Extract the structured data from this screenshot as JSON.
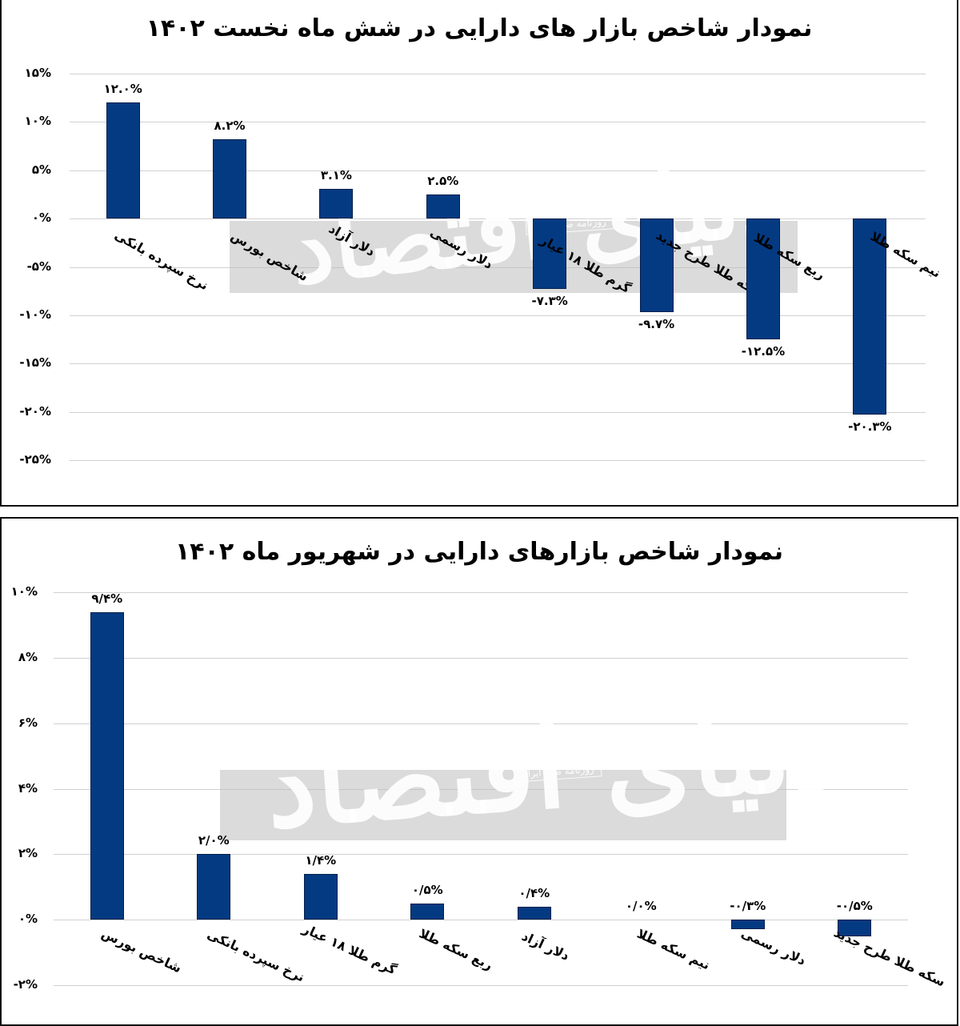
{
  "colors": {
    "bar": "#043a82",
    "grid": "#d0d0d0",
    "border": "#111111",
    "watermark": "#bebebe"
  },
  "watermark": {
    "main": "دنیای اقتصاد",
    "sub": "روزنامه صبح ایران"
  },
  "chart_data": [
    {
      "type": "bar",
      "title": "نمودار شاخص بازار های دارایی در شش ماه نخست ۱۴۰۲",
      "xlabel": "",
      "ylabel": "",
      "ylim": [
        -25,
        15
      ],
      "grid": true,
      "legend": "none",
      "yticks": [
        "۱۵%",
        "۱۰%",
        "۵%",
        "۰%",
        "-۵%",
        "-۱۰%",
        "-۱۵%",
        "-۲۰%",
        "-۲۵%"
      ],
      "ytick_values": [
        15,
        10,
        5,
        0,
        -5,
        -10,
        -15,
        -20,
        -25
      ],
      "categories": [
        "نرخ سپرده بانکی",
        "شاخص بورس",
        "دلار آزاد",
        "دلار رسمی",
        "گرم طلا ۱۸ عیار",
        "سکه طلا طرح جدید",
        "ربع سکه طلا",
        "نیم سکه طلا"
      ],
      "values": [
        12.0,
        8.2,
        3.1,
        2.5,
        -7.3,
        -9.7,
        -12.5,
        -20.3
      ],
      "value_labels": [
        "۱۲.۰%",
        "۸.۲%",
        "۳.۱%",
        "۲.۵%",
        "-۷.۳%",
        "-۹.۷%",
        "-۱۲.۵%",
        "-۲۰.۳%"
      ]
    },
    {
      "type": "bar",
      "title": "نمودار شاخص بازارهای دارایی در شهریور ماه ۱۴۰۲",
      "xlabel": "",
      "ylabel": "",
      "ylim": [
        -2,
        10
      ],
      "grid": true,
      "legend": "none",
      "yticks": [
        "۱۰%",
        "۸%",
        "۶%",
        "۴%",
        "۲%",
        "۰%",
        "-۲%"
      ],
      "ytick_values": [
        10,
        8,
        6,
        4,
        2,
        0,
        -2
      ],
      "categories": [
        "شاخص بورس",
        "نرخ سپرده بانکی",
        "گرم طلا ۱۸ عیار",
        "ربع سکه طلا",
        "دلار آزاد",
        "نیم سکه طلا",
        "دلار رسمی",
        "سکه طلا طرح جدید"
      ],
      "values": [
        9.4,
        2.0,
        1.4,
        0.5,
        0.4,
        0.0,
        -0.3,
        -0.5
      ],
      "value_labels": [
        "۹/۴%",
        "۲/۰%",
        "۱/۴%",
        "۰/۵%",
        "۰/۴%",
        "۰/۰%",
        "-۰/۳%",
        "-۰/۵%"
      ]
    }
  ]
}
